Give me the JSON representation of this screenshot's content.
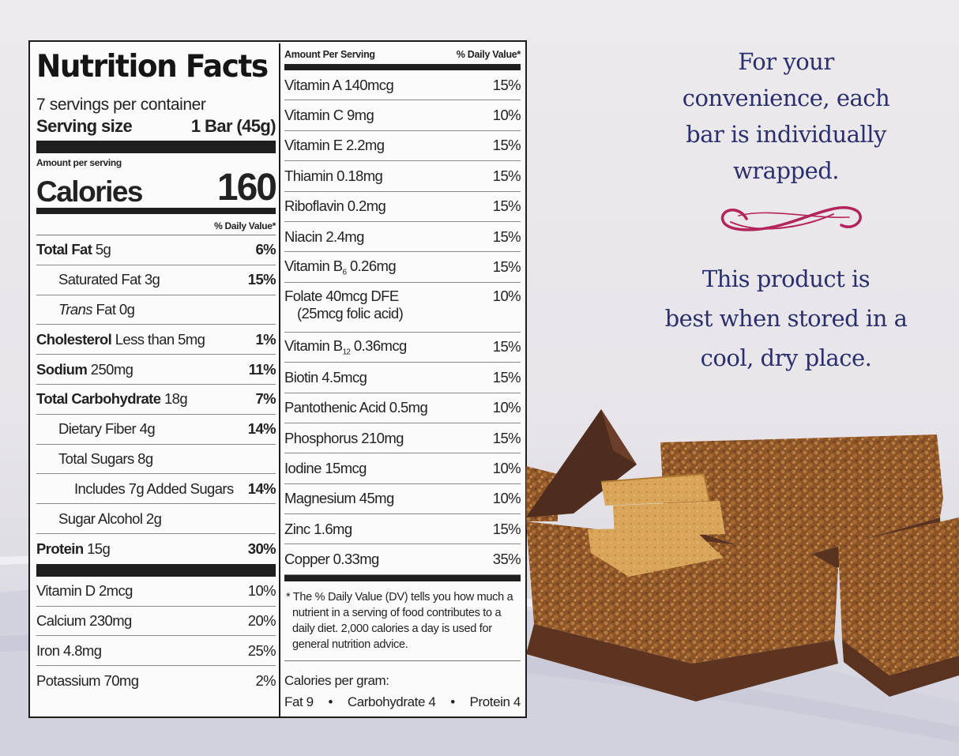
{
  "label": {
    "title": "Nutrition Facts",
    "servings_per_container": "7 servings per container",
    "serving_size_label": "Serving size",
    "serving_size_value": "1 Bar (45g)",
    "amount_per_serving": "Amount per serving",
    "calories_label": "Calories",
    "calories_value": "160",
    "daily_value_header": "% Daily Value*",
    "nutrients": [
      {
        "name": "Total Fat",
        "amount": " 5g",
        "pct": "6%"
      },
      {
        "name": "Saturated Fat 3g",
        "pct": "15%"
      },
      {
        "name_italic": "Trans",
        "name": " Fat 0g"
      },
      {
        "name": "Cholesterol",
        "amount": " Less than 5mg",
        "pct": "1%"
      },
      {
        "name": "Sodium",
        "amount": " 250mg",
        "pct": "11%"
      },
      {
        "name": "Total Carbohydrate",
        "amount": " 18g",
        "pct": "7%"
      },
      {
        "name": "Dietary Fiber 4g",
        "pct": "14%"
      },
      {
        "name": "Total Sugars 8g"
      },
      {
        "name": "Includes 7g Added Sugars",
        "pct": "14%"
      },
      {
        "name": "Sugar Alcohol 2g"
      },
      {
        "name": "Protein",
        "amount": " 15g",
        "pct": "30%"
      }
    ],
    "minerals_left": [
      {
        "name": "Vitamin D 2mcg",
        "pct": "10%"
      },
      {
        "name": "Calcium 230mg",
        "pct": "20%"
      },
      {
        "name": "Iron 4.8mg",
        "pct": "25%"
      },
      {
        "name": "Potassium 70mg",
        "pct": "2%"
      }
    ],
    "right_header_amount": "Amount Per Serving",
    "right_header_dv": "% Daily Value*",
    "vitamins_right": [
      {
        "name": "Vitamin A 140mcg",
        "pct": "15%"
      },
      {
        "name": "Vitamin C 9mg",
        "pct": "10%"
      },
      {
        "name": "Vitamin E 2.2mg",
        "pct": "15%"
      },
      {
        "name": "Thiamin 0.18mg",
        "pct": "15%"
      },
      {
        "name": "Riboflavin 0.2mg",
        "pct": "15%"
      },
      {
        "name": "Niacin 2.4mg",
        "pct": "15%"
      },
      {
        "name_pre": "Vitamin B",
        "sub": "6",
        "name_post": " 0.26mg",
        "pct": "15%"
      },
      {
        "name": "Folate 40mcg DFE",
        "sub_line": "(25mcg folic acid)",
        "pct": "10%"
      },
      {
        "name_pre": "Vitamin B",
        "sub": "12",
        "name_post": " 0.36mcg",
        "pct": "15%"
      },
      {
        "name": "Biotin 4.5mcg",
        "pct": "15%"
      },
      {
        "name": "Pantothenic Acid 0.5mg",
        "pct": "10%"
      },
      {
        "name": "Phosphorus 210mg",
        "pct": "15%"
      },
      {
        "name": "Iodine 15mcg",
        "pct": "10%"
      },
      {
        "name": "Magnesium 45mg",
        "pct": "10%"
      },
      {
        "name": "Zinc 1.6mg",
        "pct": "15%"
      },
      {
        "name": "Copper 0.33mg",
        "pct": "35%"
      }
    ],
    "footnote": "* The % Daily Value (DV) tells you how much a nutrient in a serving of food contributes to a daily diet. 2,000 calories a day is used for general nutrition advice.",
    "calories_per_gram_label": "Calories per gram:",
    "cpg_fat": "Fat 9",
    "cpg_carb": "Carbohydrate 4",
    "cpg_protein": "Protein 4",
    "bullet": "•"
  },
  "promo": {
    "convenience_lines": [
      "For your",
      "convenience, each",
      "bar is individually",
      "wrapped."
    ],
    "storage_lines": [
      "This product is",
      "best when stored in a",
      "cool, dry place."
    ]
  },
  "colors": {
    "promo_text": "#2b2f6e",
    "flourish": "#b3245a",
    "label_bg": "#fbfbfb"
  }
}
